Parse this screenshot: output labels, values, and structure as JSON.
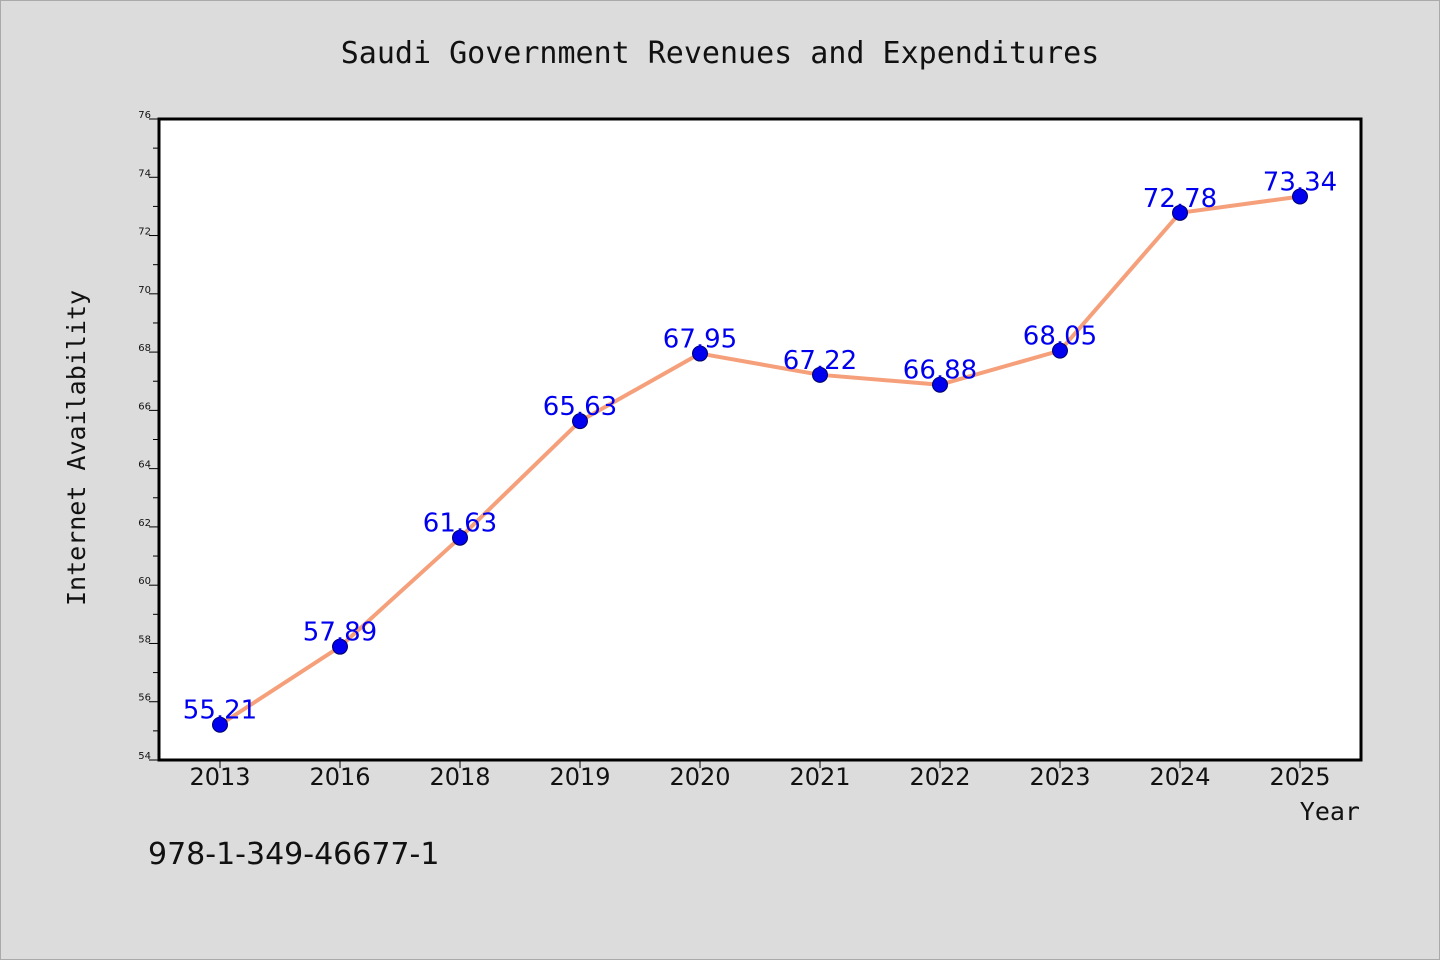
{
  "chart_data": {
    "type": "line",
    "title": "Saudi Government Revenues and Expenditures",
    "xlabel": "Year",
    "ylabel": "Internet Availability",
    "categories": [
      "2013",
      "2016",
      "2018",
      "2019",
      "2020",
      "2021",
      "2022",
      "2023",
      "2024",
      "2025"
    ],
    "series": [
      {
        "values": [
          55.21,
          57.89,
          61.63,
          65.63,
          67.95,
          67.22,
          66.88,
          68.05,
          72.78,
          73.34
        ],
        "data_labels": [
          "55.21",
          "57.89",
          "61.63",
          "65.63",
          "67.95",
          "67.22",
          "66.88",
          "68.05",
          "72.78",
          "73.34"
        ]
      }
    ],
    "ylim": [
      54,
      76
    ],
    "yticks": [
      "54",
      "56",
      "58",
      "60",
      "62",
      "64",
      "66",
      "68",
      "70",
      "72",
      "74",
      "76"
    ],
    "grid": false,
    "legend": "none",
    "line_color": "#f5a07a",
    "marker_color": "#0000ee",
    "label_color": "#0000ee",
    "background_color": "#dcdcdc",
    "plot_background_color": "#ffffff"
  },
  "annotation": {
    "text": "978-1-349-46677-1"
  }
}
